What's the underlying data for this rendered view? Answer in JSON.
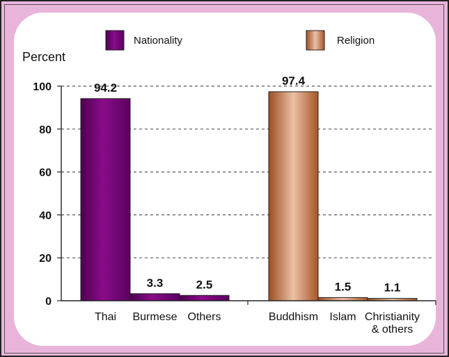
{
  "chart_data": {
    "type": "bar",
    "ylabel": "Percent",
    "ylim": [
      0,
      100
    ],
    "yticks": [
      0,
      20,
      40,
      60,
      80,
      100
    ],
    "grid": true,
    "legend_position": "top",
    "groups": [
      {
        "name": "Nationality",
        "color": "#7a0a7a",
        "categories": [
          "Thai",
          "Burmese",
          "Others"
        ],
        "values": [
          94.2,
          3.3,
          2.5
        ],
        "labels": [
          "94.2",
          "3.3",
          "2.5"
        ]
      },
      {
        "name": "Religion",
        "color": "#c97c4f",
        "categories": [
          "Buddhism",
          "Islam",
          "Christianity & others"
        ],
        "category_lines": [
          [
            "Buddhism"
          ],
          [
            "Islam"
          ],
          [
            "Christianity",
            "& others"
          ]
        ],
        "values": [
          97.4,
          1.5,
          1.1
        ],
        "labels": [
          "97.4",
          "1.5",
          "1.1"
        ]
      }
    ]
  }
}
